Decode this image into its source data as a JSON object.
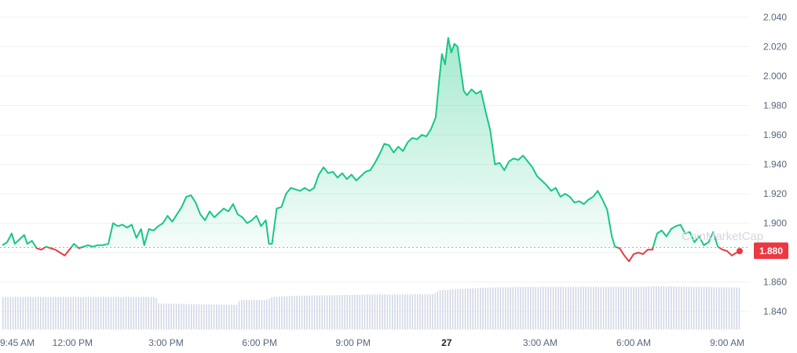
{
  "chart_data": {
    "type": "line",
    "title": "",
    "xlabel": "",
    "ylabel": "",
    "ylim": [
      1.83,
      2.045
    ],
    "y_ticks": [
      "2.040",
      "2.020",
      "2.000",
      "1.980",
      "1.960",
      "1.940",
      "1.920",
      "1.900",
      "1.880",
      "1.860",
      "1.840"
    ],
    "x_ticks": [
      {
        "label": "9:45 AM",
        "hour": 0.0,
        "bold": false
      },
      {
        "label": "12:00 PM",
        "hour": 2.25,
        "bold": false
      },
      {
        "label": "3:00 PM",
        "hour": 5.25,
        "bold": false
      },
      {
        "label": "6:00 PM",
        "hour": 8.25,
        "bold": false
      },
      {
        "label": "9:00 PM",
        "hour": 11.25,
        "bold": false
      },
      {
        "label": "27",
        "hour": 14.25,
        "bold": true
      },
      {
        "label": "3:00 AM",
        "hour": 17.25,
        "bold": false
      },
      {
        "label": "6:00 AM",
        "hour": 20.25,
        "bold": false
      },
      {
        "label": "9:00 AM",
        "hour": 23.25,
        "bold": false
      }
    ],
    "baseline": 1.8835,
    "current_price_label": "1.880",
    "up_color": "#16c784",
    "down_color": "#ea3943",
    "volume_color": "#cfd6e4",
    "watermark": "CoinMarketCap",
    "series": [
      {
        "values": [
          [
            0.0,
            1.885
          ],
          [
            0.15,
            1.887
          ],
          [
            0.3,
            1.893
          ],
          [
            0.4,
            1.886
          ],
          [
            0.55,
            1.889
          ],
          [
            0.7,
            1.892
          ],
          [
            0.8,
            1.886
          ],
          [
            0.95,
            1.888
          ],
          [
            1.1,
            1.883
          ],
          [
            1.25,
            1.882
          ],
          [
            1.4,
            1.884
          ],
          [
            1.55,
            1.883
          ],
          [
            1.7,
            1.882
          ],
          [
            1.85,
            1.88
          ],
          [
            2.0,
            1.878
          ],
          [
            2.15,
            1.882
          ],
          [
            2.3,
            1.886
          ],
          [
            2.45,
            1.883
          ],
          [
            2.6,
            1.884
          ],
          [
            2.75,
            1.885
          ],
          [
            2.9,
            1.884
          ],
          [
            3.05,
            1.885
          ],
          [
            3.2,
            1.885
          ],
          [
            3.4,
            1.886
          ],
          [
            3.55,
            1.9
          ],
          [
            3.7,
            1.898
          ],
          [
            3.85,
            1.899
          ],
          [
            4.0,
            1.897
          ],
          [
            4.15,
            1.899
          ],
          [
            4.3,
            1.89
          ],
          [
            4.45,
            1.896
          ],
          [
            4.55,
            1.885
          ],
          [
            4.7,
            1.896
          ],
          [
            4.85,
            1.895
          ],
          [
            5.0,
            1.898
          ],
          [
            5.15,
            1.9
          ],
          [
            5.3,
            1.905
          ],
          [
            5.45,
            1.901
          ],
          [
            5.6,
            1.906
          ],
          [
            5.75,
            1.911
          ],
          [
            5.9,
            1.918
          ],
          [
            6.05,
            1.919
          ],
          [
            6.2,
            1.914
          ],
          [
            6.35,
            1.906
          ],
          [
            6.5,
            1.902
          ],
          [
            6.65,
            1.908
          ],
          [
            6.8,
            1.904
          ],
          [
            6.95,
            1.907
          ],
          [
            7.1,
            1.91
          ],
          [
            7.25,
            1.908
          ],
          [
            7.4,
            1.913
          ],
          [
            7.55,
            1.906
          ],
          [
            7.7,
            1.904
          ],
          [
            7.85,
            1.9
          ],
          [
            8.0,
            1.902
          ],
          [
            8.15,
            1.905
          ],
          [
            8.3,
            1.898
          ],
          [
            8.45,
            1.902
          ],
          [
            8.55,
            1.886
          ],
          [
            8.65,
            1.886
          ],
          [
            8.8,
            1.91
          ],
          [
            8.95,
            1.911
          ],
          [
            9.1,
            1.92
          ],
          [
            9.25,
            1.924
          ],
          [
            9.4,
            1.923
          ],
          [
            9.55,
            1.922
          ],
          [
            9.7,
            1.924
          ],
          [
            9.85,
            1.922
          ],
          [
            10.0,
            1.924
          ],
          [
            10.15,
            1.933
          ],
          [
            10.3,
            1.938
          ],
          [
            10.45,
            1.934
          ],
          [
            10.6,
            1.935
          ],
          [
            10.75,
            1.931
          ],
          [
            10.9,
            1.934
          ],
          [
            11.05,
            1.93
          ],
          [
            11.2,
            1.933
          ],
          [
            11.35,
            1.929
          ],
          [
            11.5,
            1.932
          ],
          [
            11.65,
            1.935
          ],
          [
            11.8,
            1.936
          ],
          [
            11.95,
            1.941
          ],
          [
            12.1,
            1.947
          ],
          [
            12.25,
            1.954
          ],
          [
            12.4,
            1.953
          ],
          [
            12.55,
            1.948
          ],
          [
            12.7,
            1.952
          ],
          [
            12.85,
            1.949
          ],
          [
            13.0,
            1.955
          ],
          [
            13.15,
            1.958
          ],
          [
            13.3,
            1.957
          ],
          [
            13.45,
            1.96
          ],
          [
            13.6,
            1.959
          ],
          [
            13.75,
            1.964
          ],
          [
            13.9,
            1.972
          ],
          [
            14.0,
            1.995
          ],
          [
            14.1,
            2.015
          ],
          [
            14.2,
            2.008
          ],
          [
            14.3,
            2.026
          ],
          [
            14.4,
            2.016
          ],
          [
            14.5,
            2.022
          ],
          [
            14.6,
            2.02
          ],
          [
            14.7,
            2.005
          ],
          [
            14.8,
            1.99
          ],
          [
            14.9,
            1.987
          ],
          [
            15.05,
            1.991
          ],
          [
            15.2,
            1.988
          ],
          [
            15.35,
            1.99
          ],
          [
            15.5,
            1.976
          ],
          [
            15.65,
            1.963
          ],
          [
            15.8,
            1.94
          ],
          [
            15.95,
            1.941
          ],
          [
            16.1,
            1.936
          ],
          [
            16.25,
            1.942
          ],
          [
            16.4,
            1.944
          ],
          [
            16.55,
            1.943
          ],
          [
            16.7,
            1.946
          ],
          [
            16.85,
            1.942
          ],
          [
            17.0,
            1.938
          ],
          [
            17.15,
            1.932
          ],
          [
            17.3,
            1.929
          ],
          [
            17.45,
            1.926
          ],
          [
            17.6,
            1.922
          ],
          [
            17.75,
            1.924
          ],
          [
            17.9,
            1.918
          ],
          [
            18.05,
            1.92
          ],
          [
            18.2,
            1.918
          ],
          [
            18.35,
            1.914
          ],
          [
            18.5,
            1.915
          ],
          [
            18.65,
            1.913
          ],
          [
            18.8,
            1.916
          ],
          [
            18.95,
            1.918
          ],
          [
            19.1,
            1.922
          ],
          [
            19.25,
            1.916
          ],
          [
            19.4,
            1.909
          ],
          [
            19.55,
            1.891
          ],
          [
            19.65,
            1.884
          ],
          [
            19.8,
            1.883
          ],
          [
            19.95,
            1.878
          ],
          [
            20.1,
            1.874
          ],
          [
            20.25,
            1.879
          ],
          [
            20.4,
            1.88
          ],
          [
            20.55,
            1.879
          ],
          [
            20.7,
            1.882
          ],
          [
            20.85,
            1.882
          ],
          [
            21.0,
            1.893
          ],
          [
            21.15,
            1.895
          ],
          [
            21.3,
            1.891
          ],
          [
            21.45,
            1.896
          ],
          [
            21.6,
            1.898
          ],
          [
            21.75,
            1.899
          ],
          [
            21.9,
            1.893
          ],
          [
            22.05,
            1.894
          ],
          [
            22.2,
            1.887
          ],
          [
            22.35,
            1.891
          ],
          [
            22.5,
            1.885
          ],
          [
            22.65,
            1.887
          ],
          [
            22.8,
            1.894
          ],
          [
            22.95,
            1.884
          ],
          [
            23.1,
            1.882
          ],
          [
            23.25,
            1.881
          ],
          [
            23.4,
            1.878
          ],
          [
            23.55,
            1.88
          ],
          [
            23.65,
            1.881
          ]
        ]
      }
    ],
    "volume": [
      [
        0.0,
        0.9
      ],
      [
        4.9,
        0.9
      ],
      [
        5.0,
        0.72
      ],
      [
        7.5,
        0.68
      ],
      [
        7.6,
        0.82
      ],
      [
        8.5,
        0.82
      ],
      [
        8.6,
        0.9
      ],
      [
        9.3,
        0.93
      ],
      [
        10.5,
        0.95
      ],
      [
        12.0,
        0.97
      ],
      [
        13.8,
        0.98
      ],
      [
        14.0,
        1.08
      ],
      [
        14.6,
        1.12
      ],
      [
        15.5,
        1.16
      ],
      [
        17.0,
        1.18
      ],
      [
        20.5,
        1.18
      ],
      [
        21.0,
        1.2
      ],
      [
        22.0,
        1.18
      ],
      [
        23.65,
        1.16
      ]
    ]
  }
}
